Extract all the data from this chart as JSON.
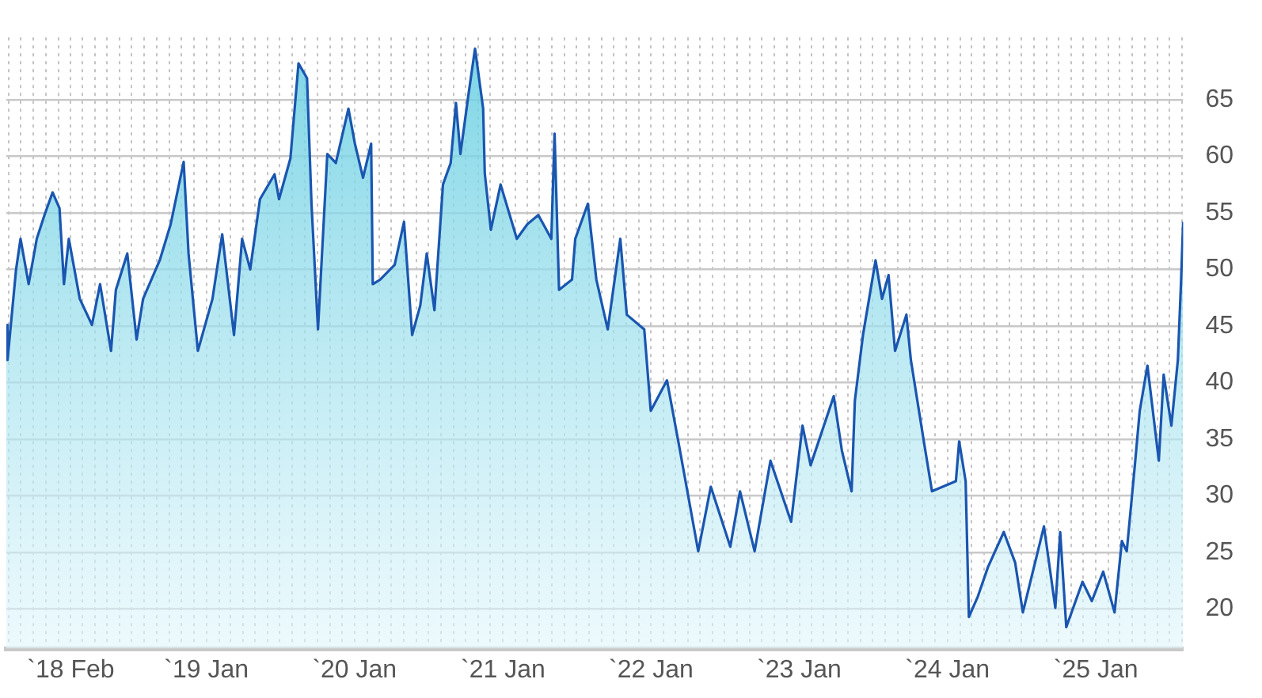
{
  "chart_data": {
    "type": "area",
    "x": [
      "2017-08-26",
      "2017-08-29",
      "2017-09-19",
      "2017-09-30",
      "2017-10-20",
      "2017-11-09",
      "2017-11-28",
      "2017-12-18",
      "2018-01-04",
      "2018-01-15",
      "2018-01-27",
      "2018-02-23",
      "2018-03-25",
      "2018-04-14",
      "2018-05-11",
      "2018-05-23",
      "2018-06-20",
      "2018-07-13",
      "2018-07-29",
      "2018-09-08",
      "2018-10-05",
      "2018-11-06",
      "2018-11-18",
      "2018-12-11",
      "2019-01-16",
      "2019-02-09",
      "2019-03-10",
      "2019-03-30",
      "2019-04-19",
      "2019-05-13",
      "2019-06-18",
      "2019-06-29",
      "2019-07-27",
      "2019-08-16",
      "2019-09-06",
      "2019-09-17",
      "2019-10-03",
      "2019-10-26",
      "2019-11-16",
      "2019-12-17",
      "2020-01-02",
      "2020-01-22",
      "2020-02-11",
      "2020-02-15",
      "2020-03-04",
      "2020-04-09",
      "2020-05-02",
      "2020-05-22",
      "2020-06-11",
      "2020-06-27",
      "2020-07-16",
      "2020-08-06",
      "2020-08-25",
      "2020-09-07",
      "2020-09-18",
      "2020-10-08",
      "2020-10-24",
      "2020-11-13",
      "2020-11-17",
      "2020-12-02",
      "2020-12-26",
      "2021-02-04",
      "2021-03-02",
      "2021-03-29",
      "2021-04-30",
      "2021-05-08",
      "2021-05-19",
      "2021-06-20",
      "2021-06-28",
      "2021-07-29",
      "2021-08-19",
      "2021-09-16",
      "2021-10-17",
      "2021-11-02",
      "2021-12-15",
      "2021-12-31",
      "2022-02-09",
      "2022-03-11",
      "2022-04-27",
      "2022-05-28",
      "2022-07-15",
      "2022-08-08",
      "2022-09-13",
      "2022-10-22",
      "2022-12-12",
      "2023-01-09",
      "2023-01-29",
      "2023-03-27",
      "2023-04-16",
      "2023-05-10",
      "2023-05-18",
      "2023-06-07",
      "2023-07-08",
      "2023-07-24",
      "2023-08-09",
      "2023-08-25",
      "2023-09-22",
      "2023-10-03",
      "2023-11-04",
      "2023-11-24",
      "2024-01-22",
      "2024-01-30",
      "2024-02-15",
      "2024-02-23",
      "2024-03-16",
      "2024-04-10",
      "2024-05-19",
      "2024-06-16",
      "2024-07-05",
      "2024-08-26",
      "2024-09-23",
      "2024-10-05",
      "2024-10-20",
      "2024-11-29",
      "2024-12-22",
      "2025-01-19",
      "2025-02-16",
      "2025-03-06",
      "2025-03-18",
      "2025-04-07",
      "2025-04-19",
      "2025-05-08",
      "2025-06-05",
      "2025-06-17",
      "2025-07-06",
      "2025-07-22",
      "2025-07-30",
      "2025-08-04"
    ],
    "series": [
      {
        "color": "#1a56b0",
        "values": [
          45.1,
          42.0,
          50.0,
          52.7,
          48.7,
          52.7,
          54.8,
          56.8,
          55.4,
          48.7,
          52.7,
          47.4,
          45.1,
          48.7,
          42.8,
          48.2,
          51.4,
          43.8,
          47.4,
          50.8,
          54.0,
          59.5,
          51.4,
          42.8,
          47.4,
          53.1,
          44.2,
          52.7,
          50.0,
          56.2,
          58.4,
          56.2,
          59.8,
          68.2,
          66.9,
          55.8,
          44.7,
          60.2,
          59.4,
          64.2,
          61.1,
          58.1,
          61.1,
          48.7,
          49.1,
          50.4,
          54.2,
          44.2,
          46.8,
          51.4,
          46.4,
          57.5,
          59.4,
          64.7,
          60.2,
          65.5,
          69.5,
          64.2,
          58.5,
          53.5,
          57.5,
          52.7,
          54.0,
          54.8,
          52.7,
          62.0,
          48.2,
          49.1,
          52.7,
          55.8,
          49.1,
          44.7,
          52.7,
          46.0,
          44.7,
          37.5,
          40.2,
          34.4,
          25.1,
          30.8,
          25.5,
          30.4,
          25.1,
          33.1,
          27.7,
          36.2,
          32.7,
          38.8,
          34.0,
          30.4,
          38.4,
          44.2,
          50.8,
          47.4,
          49.5,
          42.8,
          46.0,
          42.0,
          34.8,
          30.4,
          31.3,
          34.8,
          31.3,
          19.3,
          21.1,
          23.7,
          26.8,
          24.1,
          19.7,
          27.3,
          20.1,
          26.8,
          18.4,
          22.4,
          20.7,
          23.3,
          19.7,
          26.0,
          25.1,
          32.7,
          37.5,
          41.5,
          33.1,
          40.7,
          36.2,
          42.0,
          49.1,
          54.2
        ]
      }
    ],
    "xlim": [
      "2017-08-26",
      "2025-08-04"
    ],
    "xticks": [
      {
        "value": "2018-02",
        "label": "`18 Feb"
      },
      {
        "value": "2019-01",
        "label": "`19 Jan"
      },
      {
        "value": "2020-01",
        "label": "`20 Jan"
      },
      {
        "value": "2021-01",
        "label": "`21 Jan"
      },
      {
        "value": "2022-01",
        "label": "`22 Jan"
      },
      {
        "value": "2023-01",
        "label": "`23 Jan"
      },
      {
        "value": "2024-01",
        "label": "`24 Jan"
      },
      {
        "value": "2025-01",
        "label": "`25 Jan"
      }
    ],
    "ylim": [
      16.5,
      70.5
    ],
    "yticks": [
      20,
      25,
      30,
      35,
      40,
      45,
      50,
      55,
      60,
      65
    ],
    "grid": true
  }
}
